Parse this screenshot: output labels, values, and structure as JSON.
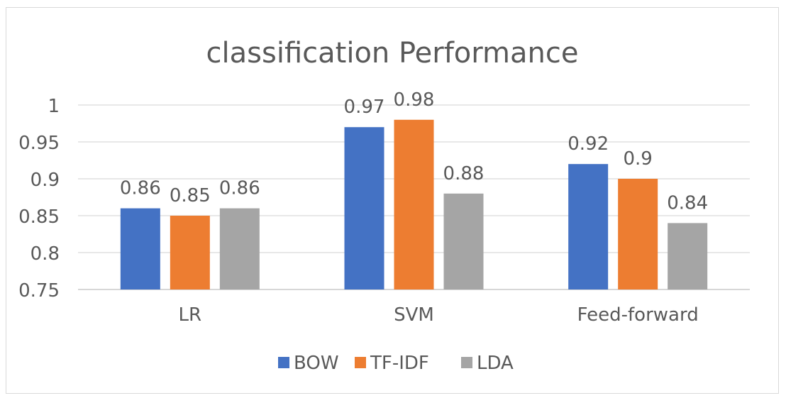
{
  "chart_data": {
    "type": "bar",
    "title": "classification Performance",
    "categories": [
      "LR",
      "SVM",
      "Feed-forward"
    ],
    "series": [
      {
        "name": "BOW",
        "values": [
          0.86,
          0.97,
          0.92
        ],
        "color": "#4472C4"
      },
      {
        "name": "TF-IDF",
        "values": [
          0.85,
          0.98,
          0.9
        ],
        "color": "#ED7D31"
      },
      {
        "name": "LDA",
        "values": [
          0.86,
          0.88,
          0.84
        ],
        "color": "#A5A5A5"
      }
    ],
    "data_labels": [
      [
        "0.86",
        "0.97",
        "0.92"
      ],
      [
        "0.85",
        "0.98",
        "0.9"
      ],
      [
        "0.86",
        "0.88",
        "0.84"
      ]
    ],
    "yticks": [
      "0.75",
      "0.8",
      "0.85",
      "0.9",
      "0.95",
      "1"
    ],
    "ylim": [
      0.75,
      1
    ],
    "grid": true,
    "legend": "bottom",
    "text_color": "#595959",
    "grid_color": "#d9d9d9"
  }
}
